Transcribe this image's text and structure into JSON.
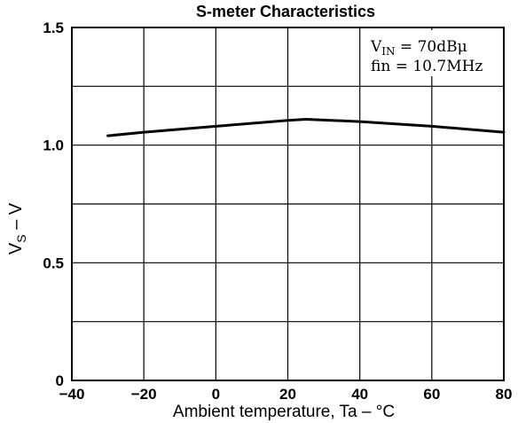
{
  "chart_data": {
    "type": "line",
    "title": "S-meter Characteristics",
    "xlabel": "Ambient temperature, Ta – °C",
    "ylabel": {
      "main": "V",
      "sub": "S",
      "rest": " – V"
    },
    "xlim": [
      -40,
      80
    ],
    "ylim": [
      0,
      1.5
    ],
    "x_ticks": [
      -40,
      -20,
      0,
      20,
      40,
      60,
      80
    ],
    "x_tick_labels": [
      "−40",
      "−20",
      "0",
      "20",
      "40",
      "60",
      "80"
    ],
    "y_ticks": [
      0,
      0.5,
      1.0,
      1.5
    ],
    "y_tick_labels": [
      "0",
      "0.5",
      "1.0",
      "1.5"
    ],
    "x_grid": [
      -40,
      -20,
      0,
      20,
      40,
      60,
      80
    ],
    "y_grid": [
      0,
      0.25,
      0.5,
      0.75,
      1.0,
      1.25,
      1.5
    ],
    "grid": true,
    "annotation": {
      "line1": {
        "main": "V",
        "sub": "IN",
        "rest": " = 70dBμ"
      },
      "line2": "fin = 10.7MHz"
    },
    "series": [
      {
        "x": [
          -30,
          -20,
          0,
          20,
          25,
          40,
          60,
          80
        ],
        "y": [
          1.04,
          1.055,
          1.08,
          1.105,
          1.11,
          1.1,
          1.08,
          1.055
        ]
      }
    ]
  }
}
